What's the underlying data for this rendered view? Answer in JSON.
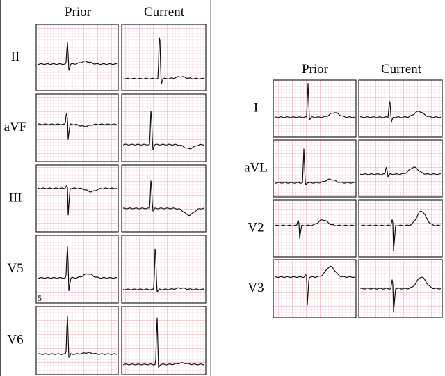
{
  "left_panel": {
    "headers": [
      "Prior",
      "Current"
    ],
    "leads": [
      "II",
      "aVF",
      "III",
      "V5",
      "V6"
    ],
    "annotation": "5"
  },
  "right_panel": {
    "headers": [
      "Prior",
      "Current"
    ],
    "leads": [
      "I",
      "aVL",
      "V2",
      "V3"
    ]
  }
}
